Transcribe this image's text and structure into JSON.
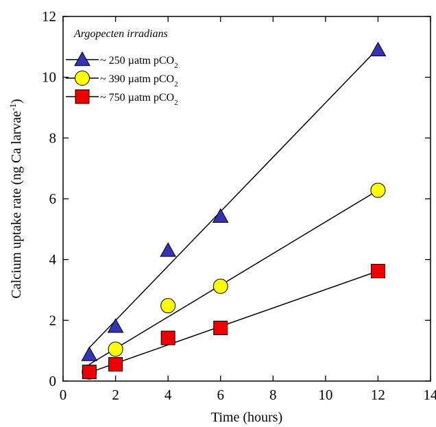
{
  "chart_data": {
    "type": "scatter",
    "xlabel": "Time (hours)",
    "ylabel_main": "Calcium uptake rate (ng Ca larvae",
    "ylabel_sup": "-1",
    "ylabel_close": ")",
    "xlim": [
      0,
      14
    ],
    "ylim": [
      0,
      12
    ],
    "xticks": [
      0,
      2,
      4,
      6,
      8,
      10,
      12,
      14
    ],
    "yticks": [
      0,
      2,
      4,
      6,
      8,
      10,
      12
    ],
    "grid": false,
    "legend_placement": "top-left",
    "legend_title": "Argopecten irradians",
    "series": [
      {
        "name_main": "~ 250 µatm pCO",
        "name_sub": "2",
        "marker": "triangle",
        "color": "#3333b3",
        "x": [
          1,
          2,
          4,
          6,
          12
        ],
        "y": [
          0.87,
          1.8,
          4.3,
          5.42,
          10.9
        ],
        "fit": [
          [
            1,
            1.1
          ],
          [
            12,
            10.95
          ]
        ]
      },
      {
        "name_main": "~ 390 µatm pCO",
        "name_sub": "2",
        "marker": "circle",
        "color": "#ffff00",
        "x": [
          1,
          2,
          4,
          6,
          12
        ],
        "y": [
          0.3,
          1.05,
          2.48,
          3.12,
          6.28
        ],
        "fit": [
          [
            1,
            0.55
          ],
          [
            12,
            6.28
          ]
        ]
      },
      {
        "name_main": "~ 750 µatm pCO",
        "name_sub": "2",
        "marker": "square",
        "color": "#ee0000",
        "x": [
          1,
          2,
          4,
          6,
          12
        ],
        "y": [
          0.3,
          0.55,
          1.42,
          1.75,
          3.62
        ],
        "fit": [
          [
            1,
            0.28
          ],
          [
            12,
            3.62
          ]
        ]
      }
    ]
  }
}
